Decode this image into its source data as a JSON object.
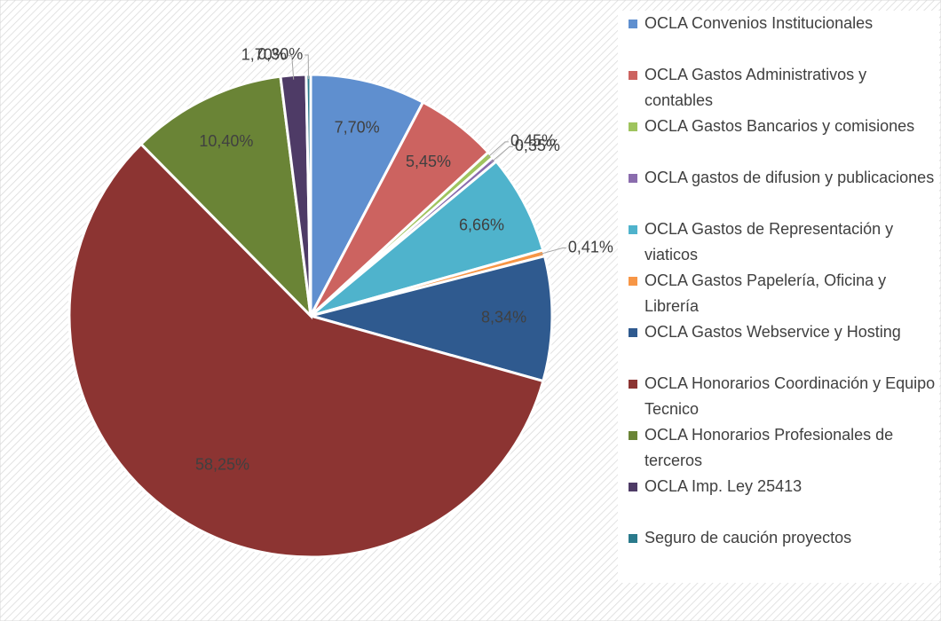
{
  "chart_data": {
    "type": "pie",
    "categories": [
      "OCLA Convenios Institucionales",
      "OCLA Gastos Administrativos y contables",
      "OCLA Gastos Bancarios y comisiones",
      "OCLA gastos de difusion y publicaciones",
      "OCLA Gastos de Representación y viaticos",
      "OCLA Gastos Papelería, Oficina y Librería",
      "OCLA Gastos Webservice y Hosting",
      "OCLA Honorarios Coordinación y Equipo Tecnico",
      "OCLA Honorarios Profesionales de terceros",
      "OCLA Imp. Ley 25413",
      "Seguro de caución proyectos"
    ],
    "values": [
      7.7,
      5.45,
      0.45,
      0.35,
      6.66,
      0.41,
      8.34,
      58.25,
      10.4,
      1.7,
      0.3
    ],
    "value_labels": [
      "7,70%",
      "5,45%",
      "0,45%",
      "0,35%",
      "6,66%",
      "0,41%",
      "8,34%",
      "58,25%",
      "10,40%",
      "1,70%",
      "0,30%"
    ],
    "colors": [
      "#5f8fcf",
      "#cc6360",
      "#9fc45e",
      "#8a6cad",
      "#4fb3cc",
      "#f79646",
      "#2f5a8f",
      "#8c3432",
      "#6a8436",
      "#4e3b66",
      "#2a7a8c"
    ],
    "legend": "right"
  }
}
